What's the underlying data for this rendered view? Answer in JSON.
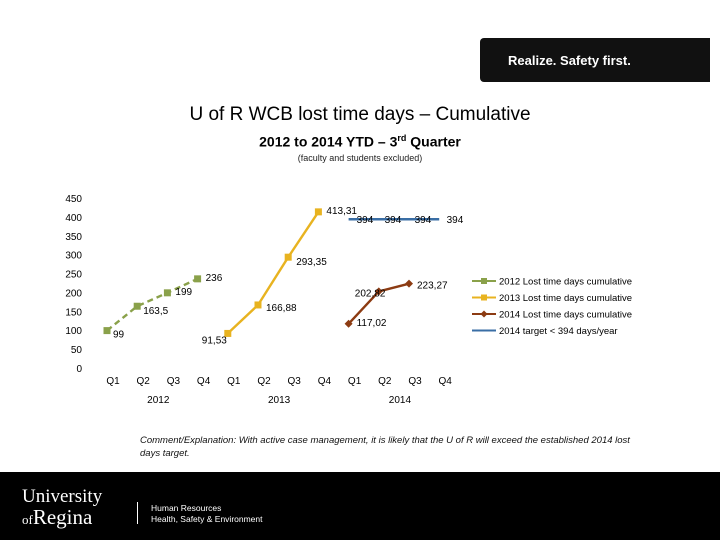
{
  "tagline": "Realize. Safety first.",
  "title": "U of R WCB lost time days – Cumulative",
  "subtitle_main": "2012 to 2014 YTD – 3",
  "subtitle_sup": "rd",
  "subtitle_end": " Quarter",
  "note": "(faculty and students excluded)",
  "comment": "Comment/Explanation: With active case management, it is likely that the U of R will exceed the established 2014 lost days target.",
  "footer": {
    "logo_line1": "University",
    "logo_of": "of",
    "logo_line2": "Regina",
    "dept_line1": "Human Resources",
    "dept_line2": "Health, Safety & Environment"
  },
  "colors": {
    "s2012": "#8aa14a",
    "s2013": "#e8b320",
    "s2014": "#8c3b12",
    "target": "#3a6ea5"
  },
  "chart_data": {
    "type": "line",
    "y_ticks": [
      "0",
      "50",
      "100",
      "150",
      "200",
      "250",
      "300",
      "350",
      "400",
      "450"
    ],
    "ylim": [
      0,
      450
    ],
    "categories": [
      "Q1",
      "Q2",
      "Q3",
      "Q4",
      "Q1",
      "Q2",
      "Q3",
      "Q4",
      "Q1",
      "Q2",
      "Q3",
      "Q4"
    ],
    "groups": [
      "2012",
      "2013",
      "2014"
    ],
    "legend_position": "right",
    "series": [
      {
        "name": "2012 Lost time days cumulative",
        "color_key": "s2012",
        "dash": true,
        "marker": "square",
        "points": [
          [
            0,
            99
          ],
          [
            1,
            163.5
          ],
          [
            2,
            199
          ],
          [
            3,
            236
          ]
        ],
        "labels": [
          "99",
          "163,5",
          "199",
          "236"
        ]
      },
      {
        "name": "2013 Lost time days cumulative",
        "color_key": "s2013",
        "dash": false,
        "marker": "square",
        "points": [
          [
            4,
            91.53
          ],
          [
            5,
            166.88
          ],
          [
            6,
            293.35
          ],
          [
            7,
            413.31
          ]
        ],
        "labels": [
          "91,53",
          "166,88",
          "293,35",
          "413,31"
        ]
      },
      {
        "name": "2014 Lost time days cumulative",
        "color_key": "s2014",
        "dash": false,
        "marker": "diamond",
        "points": [
          [
            8,
            117.02
          ],
          [
            9,
            202.82
          ],
          [
            10,
            223.27
          ]
        ],
        "labels": [
          "117,02",
          "202,82",
          "223,27"
        ]
      },
      {
        "name": "2014 target < 394 days/year",
        "color_key": "target",
        "dash": false,
        "marker": "none",
        "points": [
          [
            8,
            394
          ],
          [
            9,
            394
          ],
          [
            10,
            394
          ],
          [
            11,
            394
          ]
        ],
        "labels": [
          "394",
          "394",
          "394",
          "394"
        ]
      }
    ]
  }
}
